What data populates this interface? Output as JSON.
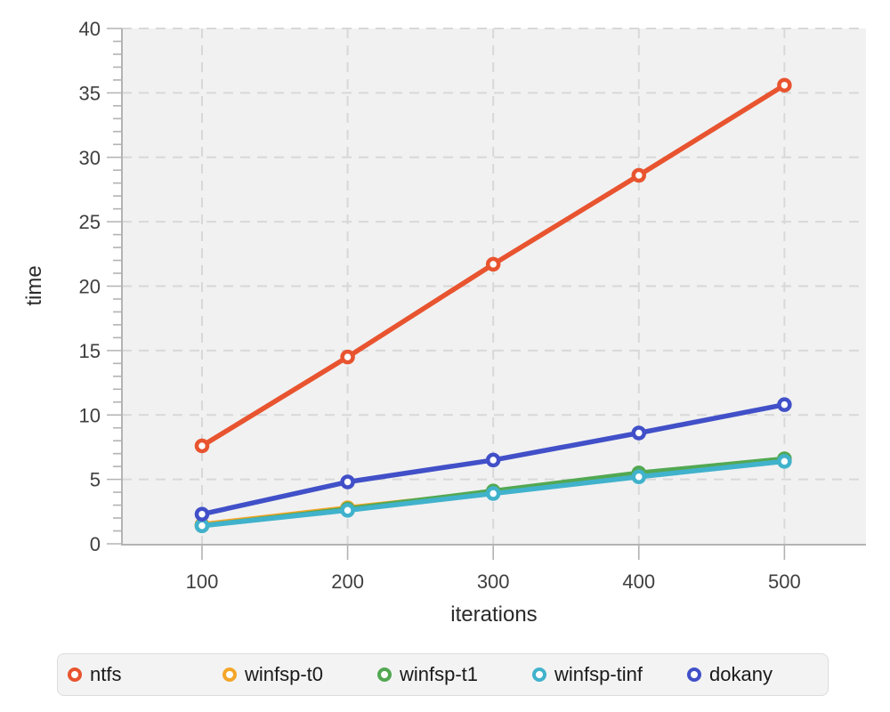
{
  "chart_data": {
    "type": "line",
    "title": "",
    "xlabel": "iterations",
    "ylabel": "time",
    "x": [
      100,
      200,
      300,
      400,
      500
    ],
    "series": [
      {
        "name": "ntfs",
        "color": "#E8542F",
        "values": [
          7.6,
          14.5,
          21.7,
          28.6,
          35.6
        ]
      },
      {
        "name": "winfsp-t0",
        "color": "#F4A62A",
        "values": [
          1.5,
          2.8,
          4.0,
          5.3,
          6.5
        ]
      },
      {
        "name": "winfsp-t1",
        "color": "#52A852",
        "values": [
          1.4,
          2.7,
          4.1,
          5.5,
          6.6
        ]
      },
      {
        "name": "winfsp-tinf",
        "color": "#41B2CC",
        "values": [
          1.4,
          2.6,
          3.9,
          5.2,
          6.4
        ]
      },
      {
        "name": "dokany",
        "color": "#4150C8",
        "values": [
          2.3,
          4.8,
          6.5,
          8.6,
          10.8
        ]
      }
    ],
    "xticks": [
      100,
      200,
      300,
      400,
      500
    ],
    "yticks": [
      0,
      5,
      10,
      15,
      20,
      25,
      30,
      35,
      40
    ],
    "xlim": [
      45,
      556
    ],
    "ylim": [
      0,
      40
    ],
    "y_minor_step": 1,
    "grid": true,
    "marker_style": "open-circle",
    "legend_position": "bottom",
    "colors": {
      "plot_bg": "#f1f1f1",
      "grid": "#d8d8d8",
      "axis": "#b3b3b3",
      "tick_label": "#3f3f3f",
      "axis_title": "#2b2b2b"
    }
  }
}
